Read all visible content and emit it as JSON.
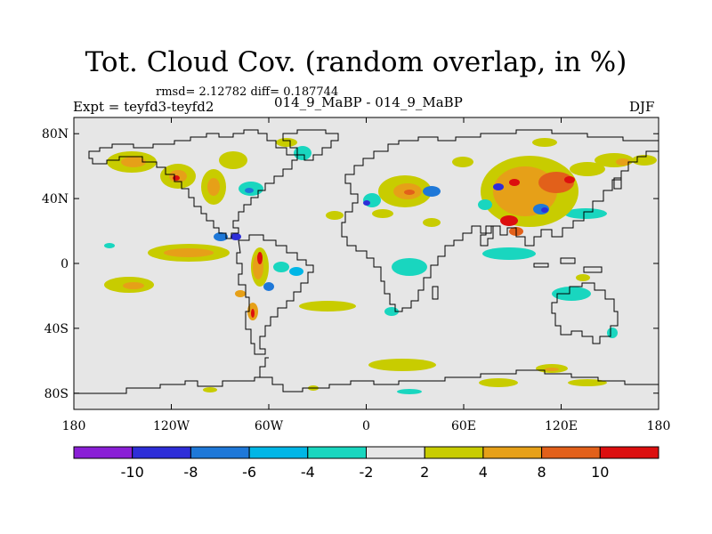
{
  "title": "Tot. Cloud Cov. (random overlap, in %)",
  "stats_line": "rmsd= 2.12782  diff= 0.187744",
  "experiment": "Expt = teyfd3-teyfd2",
  "period": "014_9_MaBP - 014_9_MaBP",
  "season": "DJF",
  "chart_data": {
    "type": "map",
    "field": "Total cloud cover difference (random overlap, %)",
    "x_ticks": [
      "180",
      "120W",
      "60W",
      "0",
      "60E",
      "120E",
      "180"
    ],
    "y_ticks": [
      "80N",
      "40N",
      "0",
      "40S",
      "80S"
    ],
    "x_range_deg": [
      -180,
      180
    ],
    "y_range_deg": [
      -90,
      90
    ],
    "colorbar": {
      "levels": [
        "-10",
        "-8",
        "-6",
        "-4",
        "-2",
        "2",
        "4",
        "8",
        "10"
      ],
      "colors": [
        "#8a1fd6",
        "#2e2ed8",
        "#1e78d8",
        "#00b6e6",
        "#19d6bf",
        "#e6e6e6",
        "#c8cc00",
        "#e6a018",
        "#e2601a",
        "#dc0f0f"
      ]
    },
    "background_color": "#e6e6e6"
  }
}
